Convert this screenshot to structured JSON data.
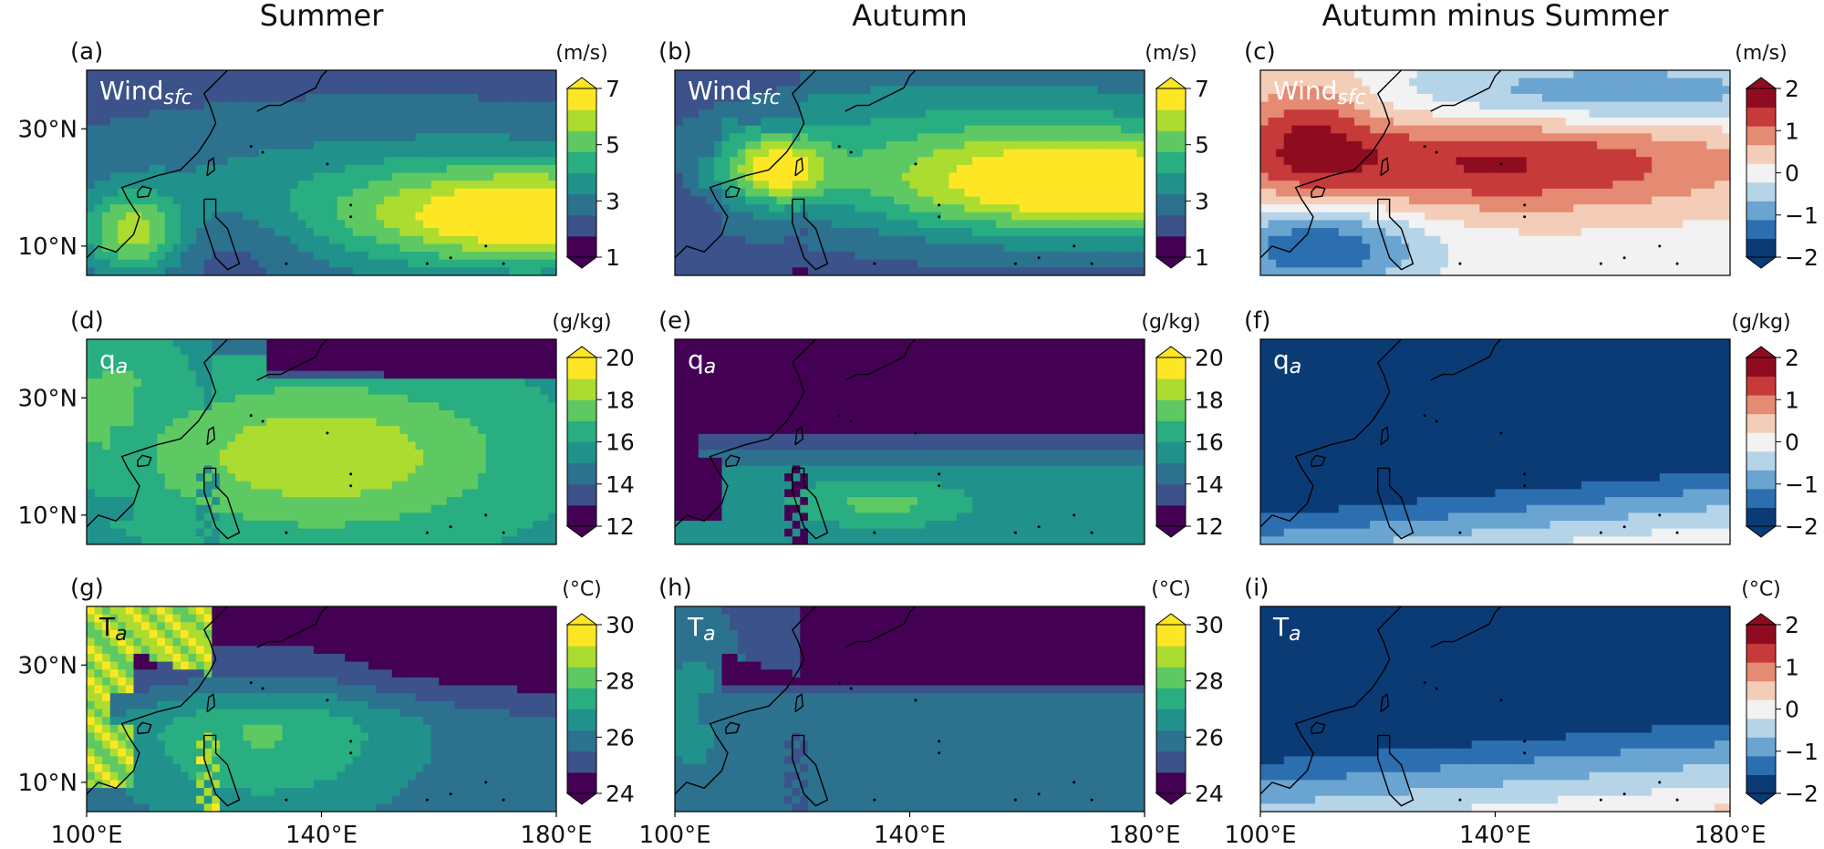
{
  "chart_data": {
    "type": "heatmap",
    "column_titles": [
      "Summer",
      "Autumn",
      "Autumn minus Summer"
    ],
    "x_ticks": [
      "100°E",
      "140°E",
      "180°E"
    ],
    "x_tick_values": [
      100,
      140,
      180
    ],
    "y_ticks": [
      "30°N",
      "10°N"
    ],
    "y_tick_values": [
      30,
      10
    ],
    "xlim": [
      100,
      180
    ],
    "ylim": [
      5,
      40
    ],
    "rows": [
      {
        "variable_main": "Wind",
        "variable_sub": "sfc",
        "unit": "(m/s)",
        "levels": [
          1,
          2,
          3,
          4,
          5,
          6,
          7
        ],
        "colorbar_ticks": [
          "7",
          "5",
          "3",
          "1"
        ],
        "colorbar_tick_values": [
          7,
          5,
          3,
          1
        ],
        "diff_unit": "(m/s)",
        "diff_levels": [
          -2,
          -1.5,
          -1,
          -0.5,
          0,
          0.5,
          1,
          1.5,
          2
        ],
        "diff_colorbar_ticks": [
          "2",
          "1",
          "0",
          "−1",
          "−2"
        ],
        "diff_colorbar_tick_values": [
          2,
          1,
          0,
          -1,
          -2
        ]
      },
      {
        "variable_main": "q",
        "variable_sub": "a",
        "unit": "(g/kg)",
        "levels": [
          12,
          14,
          16,
          18,
          20
        ],
        "colorbar_ticks": [
          "20",
          "18",
          "16",
          "14",
          "12"
        ],
        "colorbar_tick_values": [
          20,
          18,
          16,
          14,
          12
        ],
        "diff_unit": "(g/kg)",
        "diff_levels": [
          -2,
          -1.5,
          -1,
          -0.5,
          0,
          0.5,
          1,
          1.5,
          2
        ],
        "diff_colorbar_ticks": [
          "2",
          "1",
          "0",
          "−1",
          "−2"
        ],
        "diff_colorbar_tick_values": [
          2,
          1,
          0,
          -1,
          -2
        ]
      },
      {
        "variable_main": "T",
        "variable_sub": "a",
        "unit": "(°C)",
        "levels": [
          24,
          26,
          28,
          30
        ],
        "colorbar_ticks": [
          "30",
          "28",
          "26",
          "24"
        ],
        "colorbar_tick_values": [
          30,
          28,
          26,
          24
        ],
        "diff_unit": "(°C)",
        "diff_levels": [
          -2,
          -1.5,
          -1,
          -0.5,
          0,
          0.5,
          1,
          1.5,
          2
        ],
        "diff_colorbar_ticks": [
          "2",
          "1",
          "0",
          "−1",
          "−2"
        ],
        "diff_colorbar_tick_values": [
          2,
          1,
          0,
          -1,
          -2
        ]
      }
    ],
    "panel_letters": [
      "(a)",
      "(b)",
      "(c)",
      "(d)",
      "(e)",
      "(f)",
      "(g)",
      "(h)",
      "(i)"
    ],
    "colors": {
      "seq": [
        "#440154",
        "#3b528b",
        "#2c728e",
        "#21918c",
        "#28ae80",
        "#5ec962",
        "#addc30",
        "#fde725"
      ],
      "div": [
        "#0a3b75",
        "#2c6fb0",
        "#6aa4d0",
        "#b6d4e8",
        "#f2f2f2",
        "#f4cdb8",
        "#e58a73",
        "#c73a3a",
        "#8f0c20"
      ],
      "land_outline": "#000000"
    }
  }
}
